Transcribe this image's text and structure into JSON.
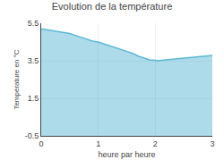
{
  "chart_data": {
    "type": "area",
    "title": "Evolution de la température",
    "xlabel": "heure par heure",
    "ylabel": "Température en °C",
    "x": [
      0,
      0.1,
      0.2,
      0.3,
      0.4,
      0.5,
      0.6,
      0.7,
      0.8,
      0.9,
      1.0,
      1.1,
      1.2,
      1.3,
      1.4,
      1.5,
      1.6,
      1.7,
      1.8,
      1.9,
      2.0,
      2.05,
      2.1,
      2.2,
      2.3,
      2.4,
      2.5,
      2.6,
      2.7,
      2.8,
      2.9,
      3.0
    ],
    "values": [
      5.2,
      5.15,
      5.1,
      5.05,
      5.0,
      4.95,
      4.85,
      4.75,
      4.65,
      4.55,
      4.5,
      4.4,
      4.3,
      4.2,
      4.1,
      4.0,
      3.9,
      3.75,
      3.65,
      3.55,
      3.52,
      3.5,
      3.52,
      3.55,
      3.57,
      3.6,
      3.63,
      3.66,
      3.7,
      3.73,
      3.76,
      3.78
    ],
    "baseline": -0.5,
    "color": "#5bb8d4",
    "xlim": [
      0,
      3
    ],
    "ylim": [
      -0.5,
      5.5
    ],
    "xticks": [
      0,
      1,
      2,
      3
    ],
    "yticks": [
      5.5,
      3.5,
      1.5,
      -0.5
    ],
    "grid": true
  }
}
